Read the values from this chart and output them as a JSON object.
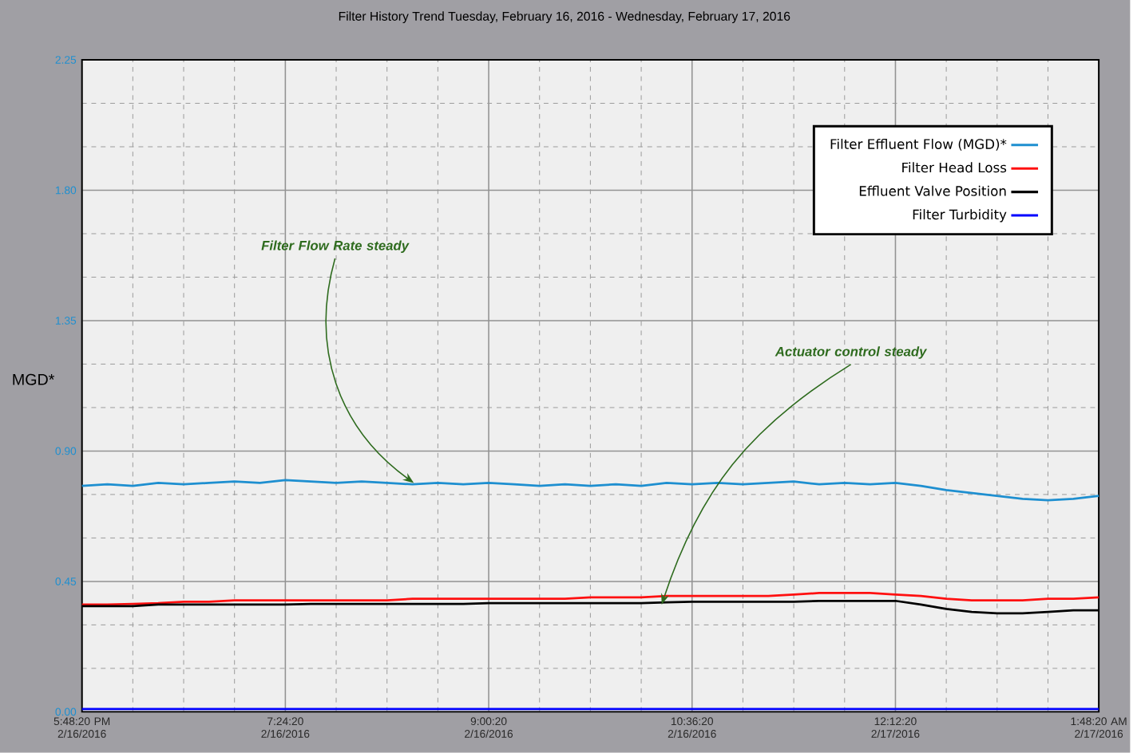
{
  "chart_data": {
    "type": "line",
    "title": "Filter History Trend      Tuesday, February 16, 2016 - Wednesday, February 17, 2016",
    "ylabel": "MGD*",
    "x": [
      "2016-02-16T17:48:20",
      "2016-02-16T18:00:20",
      "2016-02-16T18:12:20",
      "2016-02-16T18:24:20",
      "2016-02-16T18:36:20",
      "2016-02-16T18:48:20",
      "2016-02-16T19:00:20",
      "2016-02-16T19:12:20",
      "2016-02-16T19:24:20",
      "2016-02-16T19:36:20",
      "2016-02-16T19:48:20",
      "2016-02-16T20:00:20",
      "2016-02-16T20:12:20",
      "2016-02-16T20:24:20",
      "2016-02-16T20:36:20",
      "2016-02-16T20:48:20",
      "2016-02-16T21:00:20",
      "2016-02-16T21:12:20",
      "2016-02-16T21:24:20",
      "2016-02-16T21:36:20",
      "2016-02-16T21:48:20",
      "2016-02-16T22:00:20",
      "2016-02-16T22:12:20",
      "2016-02-16T22:24:20",
      "2016-02-16T22:36:20",
      "2016-02-16T22:48:20",
      "2016-02-16T23:00:20",
      "2016-02-16T23:12:20",
      "2016-02-16T23:24:20",
      "2016-02-16T23:36:20",
      "2016-02-16T23:48:20",
      "2016-02-17T00:00:20",
      "2016-02-17T00:12:20",
      "2016-02-17T00:24:20",
      "2016-02-17T00:36:20",
      "2016-02-17T00:48:20",
      "2016-02-17T01:00:20",
      "2016-02-17T01:12:20",
      "2016-02-17T01:24:20",
      "2016-02-17T01:36:20",
      "2016-02-17T01:48:20"
    ],
    "series": [
      {
        "name": "Filter Effluent Flow (MGD)*",
        "color": "#1e8fd0",
        "values": [
          0.78,
          0.785,
          0.78,
          0.79,
          0.785,
          0.79,
          0.795,
          0.79,
          0.8,
          0.795,
          0.79,
          0.795,
          0.79,
          0.785,
          0.79,
          0.785,
          0.79,
          0.785,
          0.78,
          0.785,
          0.78,
          0.785,
          0.78,
          0.79,
          0.785,
          0.79,
          0.785,
          0.79,
          0.795,
          0.785,
          0.79,
          0.785,
          0.79,
          0.78,
          0.765,
          0.755,
          0.745,
          0.735,
          0.73,
          0.735,
          0.745
        ]
      },
      {
        "name": "Filter Head Loss",
        "color": "#ff1010",
        "values": [
          0.37,
          0.37,
          0.372,
          0.375,
          0.38,
          0.38,
          0.385,
          0.385,
          0.385,
          0.385,
          0.385,
          0.385,
          0.385,
          0.39,
          0.39,
          0.39,
          0.39,
          0.39,
          0.39,
          0.39,
          0.395,
          0.395,
          0.395,
          0.4,
          0.4,
          0.4,
          0.4,
          0.4,
          0.405,
          0.41,
          0.41,
          0.41,
          0.405,
          0.4,
          0.39,
          0.385,
          0.385,
          0.385,
          0.39,
          0.39,
          0.395
        ]
      },
      {
        "name": "Effluent Valve Position",
        "color": "#000000",
        "values": [
          0.365,
          0.365,
          0.365,
          0.37,
          0.37,
          0.37,
          0.37,
          0.37,
          0.37,
          0.372,
          0.372,
          0.372,
          0.372,
          0.372,
          0.372,
          0.372,
          0.375,
          0.375,
          0.375,
          0.375,
          0.375,
          0.375,
          0.375,
          0.378,
          0.38,
          0.38,
          0.38,
          0.38,
          0.38,
          0.383,
          0.383,
          0.383,
          0.383,
          0.37,
          0.355,
          0.345,
          0.34,
          0.34,
          0.345,
          0.35,
          0.35
        ]
      },
      {
        "name": "Filter Turbidity",
        "color": "#0000ff",
        "values": [
          0.01,
          0.01,
          0.01,
          0.01,
          0.01,
          0.01,
          0.01,
          0.01,
          0.01,
          0.01,
          0.01,
          0.01,
          0.01,
          0.01,
          0.01,
          0.01,
          0.01,
          0.01,
          0.01,
          0.01,
          0.01,
          0.01,
          0.01,
          0.01,
          0.01,
          0.01,
          0.01,
          0.01,
          0.01,
          0.01,
          0.01,
          0.01,
          0.01,
          0.01,
          0.01,
          0.01,
          0.01,
          0.01,
          0.01,
          0.01,
          0.01
        ]
      }
    ],
    "xlim": [
      "2016-02-16T17:48:20",
      "2016-02-17T01:48:20"
    ],
    "xticks": [
      {
        "value": "2016-02-16T17:48:20",
        "label": "5:48:20 PM 2/16/2016"
      },
      {
        "value": "2016-02-16T19:24:20",
        "label": "7:24:20 2/16/2016"
      },
      {
        "value": "2016-02-16T21:00:20",
        "label": "9:00:20 2/16/2016"
      },
      {
        "value": "2016-02-16T22:36:20",
        "label": "10:36:20 2/16/2016"
      },
      {
        "value": "2016-02-17T00:12:20",
        "label": "12:12:20 2/17/2016"
      },
      {
        "value": "2016-02-17T01:48:20",
        "label": "1:48:20 AM 2/17/2016"
      }
    ],
    "ylim": [
      0,
      2.25
    ],
    "yticks": [
      {
        "value": 0,
        "label": "0.00"
      },
      {
        "value": 0.45,
        "label": "0.45"
      },
      {
        "value": 0.9,
        "label": "0.90"
      },
      {
        "value": 1.35,
        "label": "1.35"
      },
      {
        "value": 1.8,
        "label": "1.80"
      },
      {
        "value": 2.25,
        "label": "2.25"
      }
    ],
    "grid": true,
    "legend": "top right",
    "marker": "none",
    "line_style": "solid",
    "annotations": [
      {
        "text": "Filter Flow Rate steady",
        "x": "2016-02-16T20:25",
        "y": 0.79
      },
      {
        "text": "Actuator control steady",
        "x": "2016-02-16T22:22",
        "y": 0.37
      }
    ]
  }
}
